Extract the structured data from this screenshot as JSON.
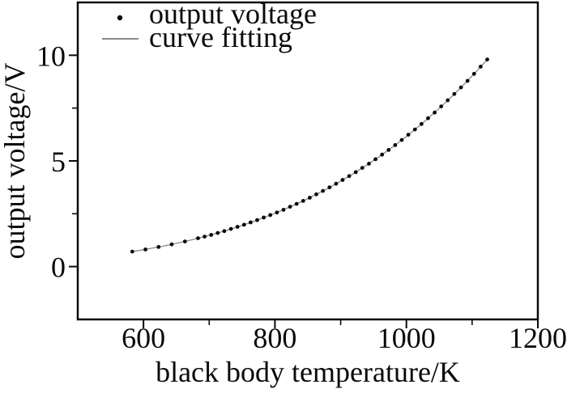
{
  "figure": {
    "background_color": "#ffffff",
    "axis_color": "#0a0a0a",
    "text_color": "#0a0a0a"
  },
  "chart_data": {
    "type": "scatter",
    "title": "",
    "xlabel": "black body temperature/K",
    "ylabel": "output voltage/V",
    "xlim": [
      500,
      1200
    ],
    "ylim": [
      -2.5,
      12.5
    ],
    "x_major_ticks": [
      600,
      800,
      1000,
      1200
    ],
    "x_minor_ticks": [
      700,
      900,
      1100
    ],
    "y_major_ticks": [
      0,
      5,
      10
    ],
    "y_minor_ticks": [
      2.5,
      7.5
    ],
    "grid": false,
    "legend_position": "top-left-inside",
    "legend": [
      {
        "label": "output voltage",
        "marker": "point",
        "color": "#0a0a0a"
      },
      {
        "label": "curve fitting",
        "marker": "line",
        "color": "#8a8a8a"
      }
    ],
    "series": [
      {
        "name": "output voltage",
        "type": "scatter",
        "marker": "dot",
        "marker_color": "#0a0a0a",
        "x": [
          583,
          603,
          623,
          643,
          663,
          683,
          693,
          703,
          713,
          723,
          733,
          743,
          753,
          763,
          773,
          783,
          793,
          803,
          813,
          823,
          833,
          843,
          853,
          863,
          873,
          883,
          893,
          903,
          913,
          923,
          933,
          943,
          953,
          963,
          973,
          983,
          993,
          1003,
          1013,
          1023,
          1033,
          1043,
          1053,
          1063,
          1073,
          1083,
          1093,
          1103,
          1113,
          1123
        ],
        "y": [
          0.71,
          0.81,
          0.93,
          1.05,
          1.19,
          1.34,
          1.42,
          1.5,
          1.59,
          1.68,
          1.78,
          1.88,
          1.98,
          2.09,
          2.2,
          2.32,
          2.44,
          2.56,
          2.69,
          2.83,
          2.97,
          3.11,
          3.26,
          3.42,
          3.58,
          3.75,
          3.92,
          4.1,
          4.28,
          4.47,
          4.67,
          4.87,
          5.08,
          5.3,
          5.52,
          5.75,
          5.99,
          6.24,
          6.49,
          6.75,
          7.02,
          7.29,
          7.58,
          7.87,
          8.17,
          8.48,
          8.79,
          9.12,
          9.46,
          9.8
        ],
        "x_unit": "K",
        "y_unit": "V"
      },
      {
        "name": "curve fitting",
        "type": "line",
        "line_color": "#8a8a8a",
        "model": "power4",
        "coefficient": 6.162e-12,
        "exponent": 4,
        "x_range": [
          581,
          1125
        ]
      }
    ]
  }
}
